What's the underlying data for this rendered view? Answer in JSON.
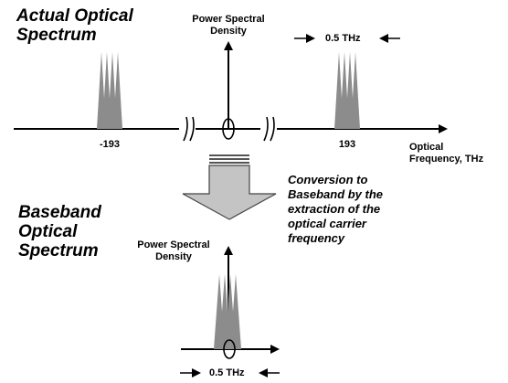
{
  "top_section": {
    "title_lines": [
      "Actual Optical",
      "Spectrum"
    ],
    "psd_label_lines": [
      "Power Spectral",
      "Density"
    ],
    "bandwidth_label": "0.5 THz",
    "tick_left": "-193",
    "tick_right": "193",
    "axis_label_lines": [
      "Optical",
      "Frequency, THz"
    ]
  },
  "conversion": {
    "caption_lines": [
      "Conversion to",
      "Baseband by the",
      "extraction of the",
      "optical carrier",
      "frequency"
    ]
  },
  "bottom_section": {
    "title_lines": [
      "Baseband",
      "Optical",
      "Spectrum"
    ],
    "psd_label_lines": [
      "Power Spectral",
      "Density"
    ],
    "bandwidth_label": "0.5 THz"
  },
  "colors": {
    "spectrum_fill": "#8c8c8c",
    "arrow_fill": "#c4c4c4",
    "line": "#000000"
  }
}
